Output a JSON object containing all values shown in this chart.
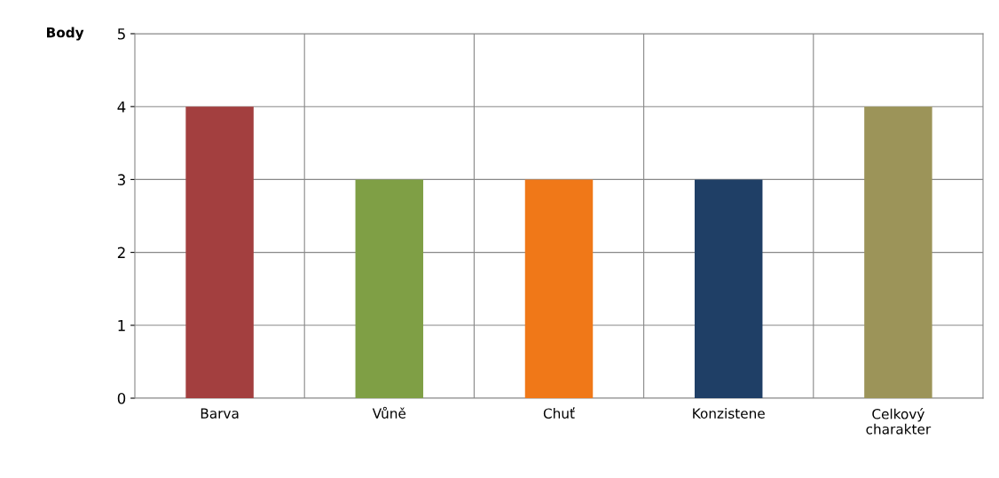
{
  "chart_data": {
    "type": "bar",
    "ylabel": "Body",
    "categories": [
      "Barva",
      "Vůně",
      "Chuť",
      "Konzistene",
      "Celkový\ncharakter"
    ],
    "values": [
      4,
      3,
      3,
      3,
      4
    ],
    "colors": [
      "#a33f3f",
      "#7f9f45",
      "#f07818",
      "#1f3f66",
      "#9c9459"
    ],
    "ylim": [
      0,
      5
    ],
    "yticks": [
      0,
      1,
      2,
      3,
      4,
      5
    ],
    "grid": true
  }
}
